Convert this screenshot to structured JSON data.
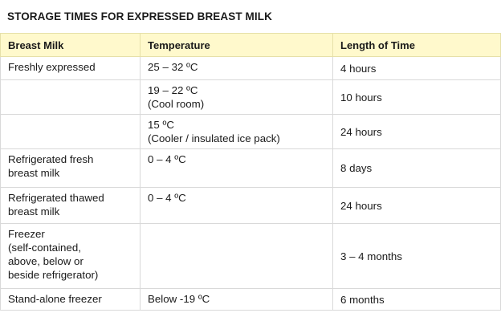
{
  "title": "STORAGE TIMES FOR EXPRESSED BREAST MILK",
  "table": {
    "headers": [
      "Breast Milk",
      "Temperature",
      "Length of Time"
    ],
    "rows": [
      {
        "milk": [
          "Freshly expressed"
        ],
        "temperature": [
          "25 – 32 ºC"
        ],
        "time": "4 hours"
      },
      {
        "milk": [],
        "temperature": [
          "19 – 22 ºC",
          "(Cool room)"
        ],
        "time": "10 hours"
      },
      {
        "milk": [],
        "temperature": [
          "15 ºC",
          "(Cooler / insulated ice pack)"
        ],
        "time": "24 hours"
      },
      {
        "milk": [
          "Refrigerated fresh",
          "breast milk"
        ],
        "temperature": [
          "0 – 4 ºC"
        ],
        "time": "8 days"
      },
      {
        "milk": [
          "Refrigerated thawed",
          "breast milk"
        ],
        "temperature": [
          "0 – 4 ºC"
        ],
        "time": "24 hours"
      },
      {
        "milk": [
          "Freezer",
          "(self-contained,",
          "above, below or",
          "beside refrigerator)"
        ],
        "temperature": [],
        "time": "3 – 4 months"
      },
      {
        "milk": [
          "Stand-alone freezer"
        ],
        "temperature": [
          "Below -19 ºC"
        ],
        "time": "6 months"
      }
    ]
  }
}
